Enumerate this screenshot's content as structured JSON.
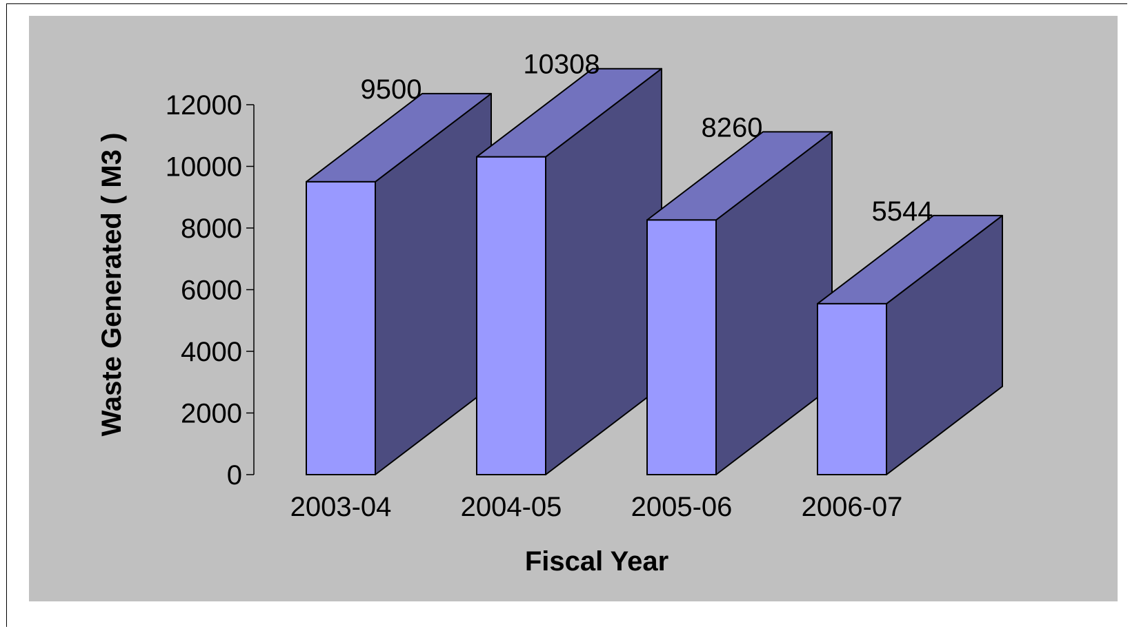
{
  "chart_data": {
    "type": "bar",
    "style": "3d-column",
    "title": "",
    "xlabel": "Fiscal Year",
    "ylabel": "Waste Generated ( M3 )",
    "categories": [
      "2003-04",
      "2004-05",
      "2005-06",
      "2006-07"
    ],
    "series": [
      {
        "values": [
          9500,
          10308,
          8260,
          5544
        ]
      }
    ],
    "data_labels": [
      "9500",
      "10308",
      "8260",
      "5544"
    ],
    "ylim": [
      0,
      12000
    ],
    "yticks": [
      "0",
      "2000",
      "4000",
      "6000",
      "8000",
      "10000",
      "12000"
    ],
    "grid": false,
    "legend": "none",
    "colors": {
      "plot_background": "#c0c0c0",
      "bar_front": "#9999ff",
      "bar_top": "#7272be",
      "bar_side": "#4c4c80",
      "outline": "#000000"
    }
  }
}
